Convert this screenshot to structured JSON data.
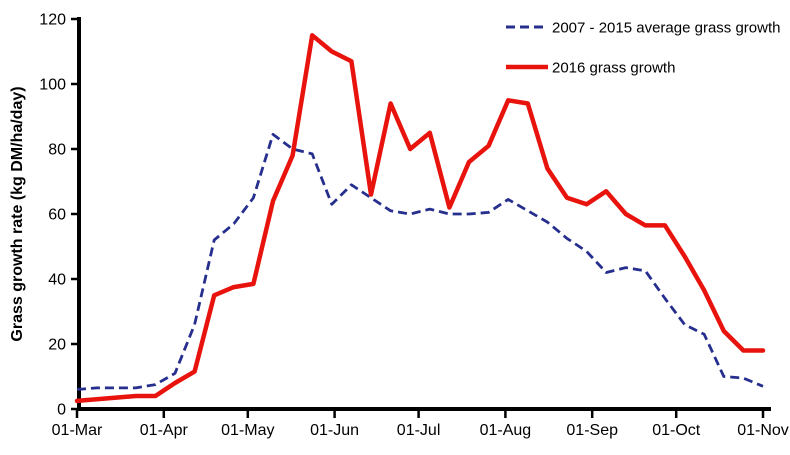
{
  "chart_data": {
    "type": "line",
    "title": "",
    "xlabel": "",
    "ylabel": "Grass growth rate (kg DM/ha/day)",
    "ylim": [
      0,
      120
    ],
    "y_ticks": [
      0,
      20,
      40,
      60,
      80,
      100,
      120
    ],
    "x_tick_labels": [
      "01-Mar",
      "01-Apr",
      "01-May",
      "01-Jun",
      "01-Jul",
      "01-Aug",
      "01-Sep",
      "01-Oct",
      "01-Nov"
    ],
    "x_tick_days": [
      0,
      31,
      61,
      92,
      122,
      153,
      184,
      214,
      245
    ],
    "x_total_days": 245,
    "grid": false,
    "legend_position": "top-right",
    "point_dates": [
      "01-Mar",
      "08-Mar",
      "15-Mar",
      "22-Mar",
      "29-Mar",
      "05-Apr",
      "12-Apr",
      "19-Apr",
      "26-Apr",
      "03-May",
      "10-May",
      "17-May",
      "24-May",
      "31-May",
      "07-Jun",
      "14-Jun",
      "21-Jun",
      "28-Jun",
      "05-Jul",
      "12-Jul",
      "19-Jul",
      "26-Jul",
      "02-Aug",
      "09-Aug",
      "16-Aug",
      "23-Aug",
      "30-Aug",
      "06-Sep",
      "13-Sep",
      "20-Sep",
      "27-Sep",
      "04-Oct",
      "11-Oct",
      "18-Oct",
      "25-Oct",
      "01-Nov"
    ],
    "point_days": [
      0,
      7,
      14,
      21,
      28,
      35,
      42,
      49,
      56,
      63,
      70,
      77,
      84,
      91,
      98,
      105,
      112,
      119,
      126,
      133,
      140,
      147,
      154,
      161,
      168,
      175,
      182,
      189,
      196,
      203,
      210,
      217,
      224,
      231,
      238,
      245
    ],
    "series": [
      {
        "name": "2007 - 2015 average grass growth",
        "color": "#272f8e",
        "style": "dashed",
        "values": [
          6,
          6.5,
          6.5,
          6.5,
          7.5,
          11,
          26,
          52,
          57,
          65,
          84.5,
          80,
          78.5,
          63,
          69,
          65,
          61,
          60,
          61.5,
          60,
          60,
          60.5,
          64.5,
          61,
          57.5,
          52.5,
          48.5,
          42,
          43.5,
          42.5,
          34,
          26,
          23,
          10,
          9.5,
          7
        ]
      },
      {
        "name": "2016 grass growth",
        "color": "#e8130d",
        "style": "solid",
        "values": [
          2.5,
          3,
          3.5,
          4,
          4,
          8,
          11.5,
          35,
          37.5,
          38.5,
          64,
          78,
          115,
          110,
          107,
          66,
          94,
          80,
          85,
          62,
          76,
          81,
          95,
          94,
          74,
          65,
          63,
          67,
          60,
          56.5,
          56.5,
          47,
          36.5,
          24,
          18,
          18
        ]
      }
    ],
    "axis_color": "#000000"
  }
}
